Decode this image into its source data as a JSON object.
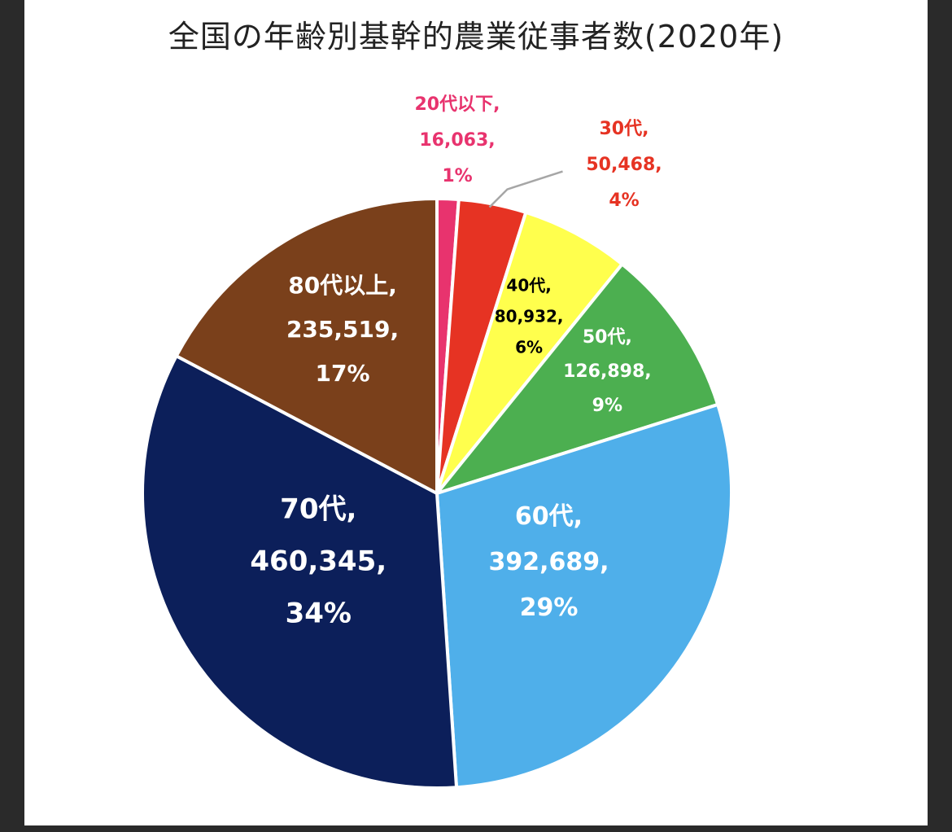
{
  "chart_data": {
    "type": "pie",
    "title": "全国の年齢別基幹的農業従事者数(2020年)",
    "slices": [
      {
        "category": "20代以下",
        "value": 16063,
        "value_label": "16,063",
        "percent_label": "1%",
        "color": "#E8336E",
        "label_color": "#E8336E"
      },
      {
        "category": "30代",
        "value": 50468,
        "value_label": "50,468",
        "percent_label": "4%",
        "color": "#E63323",
        "label_color": "#E63323"
      },
      {
        "category": "40代",
        "value": 80932,
        "value_label": "80,932",
        "percent_label": "6%",
        "color": "#FFFF4D",
        "label_color": "#000000"
      },
      {
        "category": "50代",
        "value": 126898,
        "value_label": "126,898",
        "percent_label": "9%",
        "color": "#4CAF50",
        "label_color": "#FFFFFF"
      },
      {
        "category": "60代",
        "value": 392689,
        "value_label": "392,689",
        "percent_label": "29%",
        "color": "#4FAFEA",
        "label_color": "#FFFFFF"
      },
      {
        "category": "70代",
        "value": 460345,
        "value_label": "460,345",
        "percent_label": "34%",
        "color": "#0C1F5A",
        "label_color": "#FFFFFF"
      },
      {
        "category": "80代以上",
        "value": 235519,
        "value_label": "235,519",
        "percent_label": "17%",
        "color": "#7A401B",
        "label_color": "#FFFFFF"
      }
    ]
  }
}
